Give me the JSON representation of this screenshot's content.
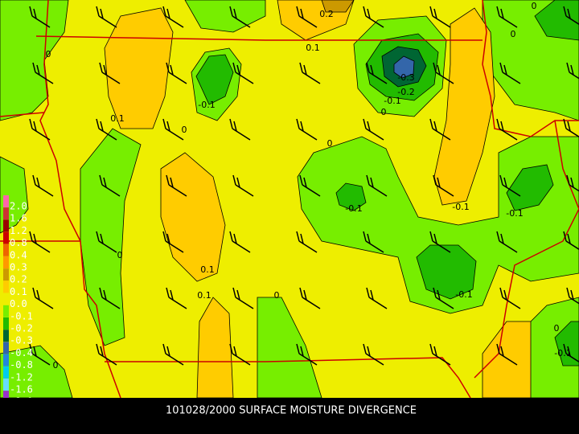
{
  "title": "101028/2000 SURFACE MOISTURE DIVERGENCE",
  "legend": {
    "labels": [
      "2.0",
      "1.6",
      "1.2",
      "0.8",
      "0.4",
      "0.3",
      "0.2",
      "0.1",
      "0.0",
      "-0.1",
      "-0.2",
      "-0.3",
      "-0.4",
      "-0.8",
      "-1.2",
      "-1.6",
      "-2.0"
    ],
    "colors": [
      "#ff66aa",
      "#cc3333",
      "#990000",
      "#cc0000",
      "#ee6600",
      "#ff9900",
      "#cc9900",
      "#ffcc00",
      "#eeee00",
      "#77ee00",
      "#22bb00",
      "#006633",
      "#3366aa",
      "#2288dd",
      "#00ccee",
      "#66ddff",
      "#9933cc"
    ]
  },
  "contour_labels": [
    "0.2",
    "0.1",
    "-0.3",
    "-0.2",
    "-0.1",
    "0",
    "-0.1",
    "0",
    "0.1",
    "0",
    "0",
    "-0.1",
    "-0.1",
    "-0.1",
    "0.1",
    "0.1",
    "0",
    "0",
    "-0.1",
    "0",
    "0",
    "-0.1",
    "0",
    "0"
  ]
}
